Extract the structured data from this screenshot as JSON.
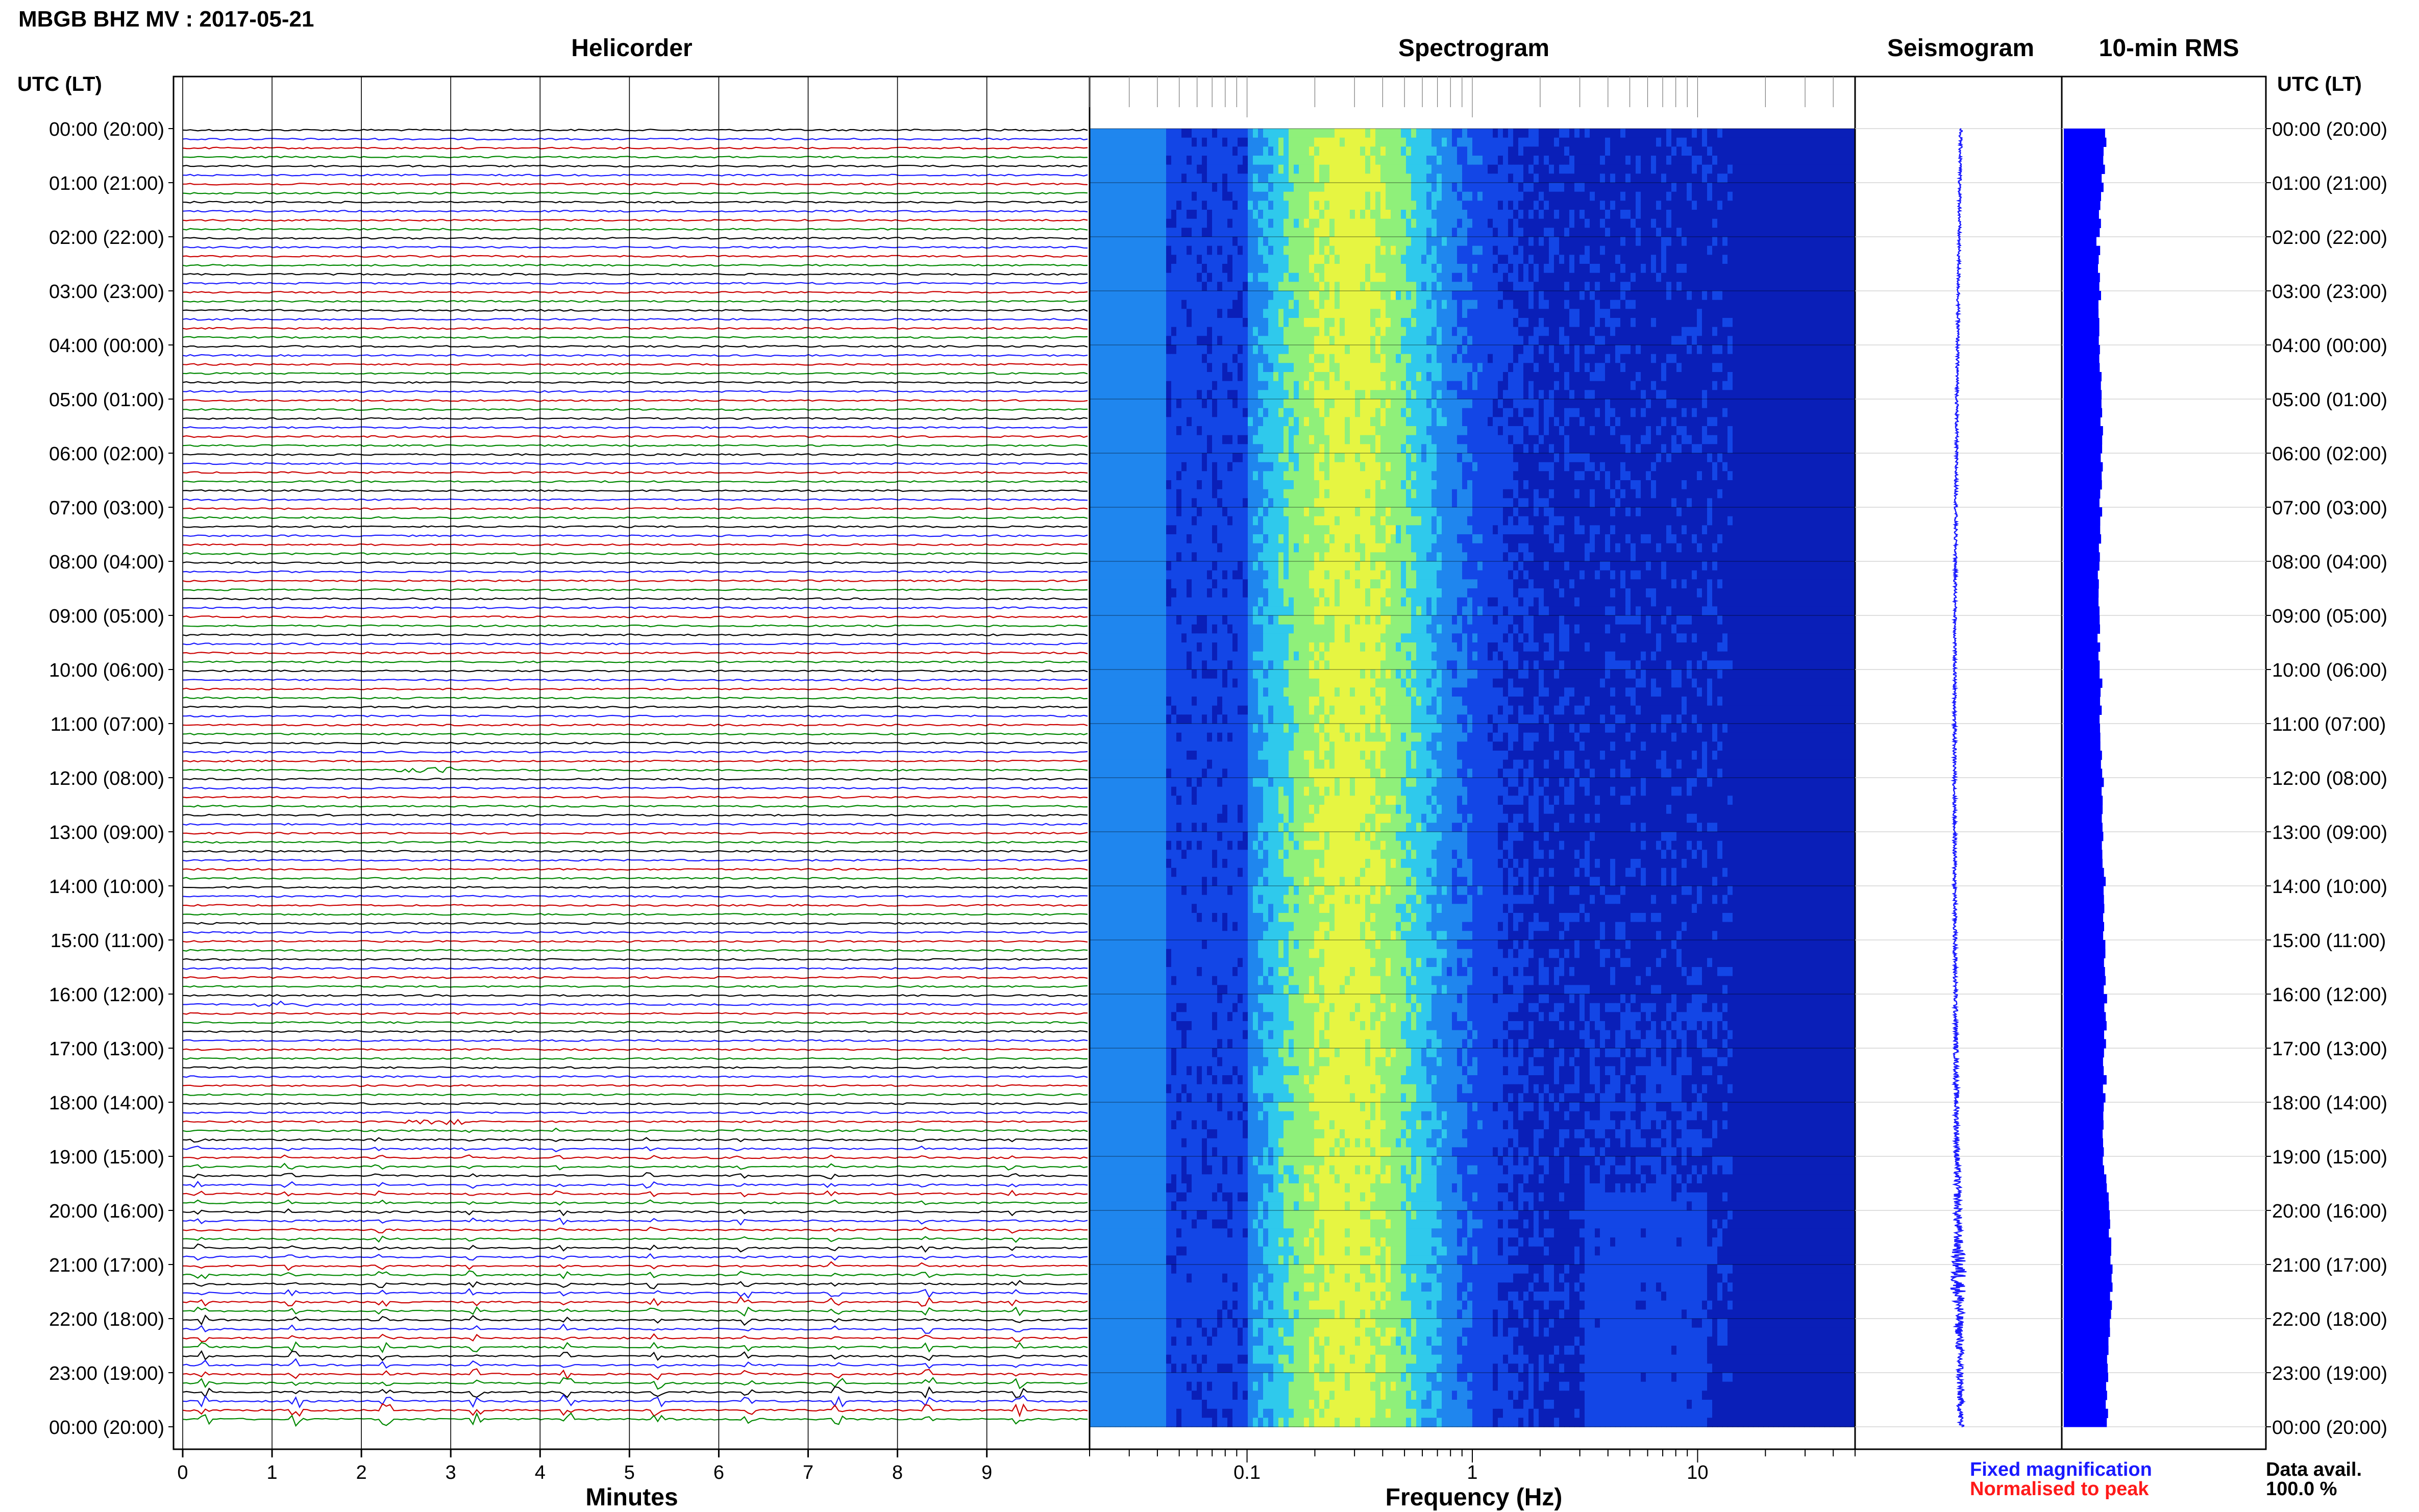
{
  "header": {
    "title": "MBGB BHZ MV : 2017-05-21",
    "tz_label_left": "UTC (LT)",
    "tz_label_right": "UTC (LT)"
  },
  "panels": {
    "helicorder_title": "Helicorder",
    "spectrogram_title": "Spectrogram",
    "seismogram_title": "Seismogram",
    "rms_title": "10-min RMS"
  },
  "time_labels": [
    "00:00 (20:00)",
    "01:00 (21:00)",
    "02:00 (22:00)",
    "03:00 (23:00)",
    "04:00 (00:00)",
    "05:00 (01:00)",
    "06:00 (02:00)",
    "07:00 (03:00)",
    "08:00 (04:00)",
    "09:00 (05:00)",
    "10:00 (06:00)",
    "11:00 (07:00)",
    "12:00 (08:00)",
    "13:00 (09:00)",
    "14:00 (10:00)",
    "15:00 (11:00)",
    "16:00 (12:00)",
    "17:00 (13:00)",
    "18:00 (14:00)",
    "19:00 (15:00)",
    "20:00 (16:00)",
    "21:00 (17:00)",
    "22:00 (18:00)",
    "23:00 (19:00)",
    "00:00 (20:00)"
  ],
  "legend": {
    "fixed_label": "Fixed magnification",
    "fixed_color": "#1a1aff",
    "normalised_label": "Normalised to peak",
    "normalised_color": "#ff1a1a"
  },
  "availability": {
    "label": "Data avail.",
    "value": "100.0 %"
  },
  "chart_data": [
    {
      "type": "line",
      "name": "helicorder",
      "title": "Helicorder",
      "xlabel": "Minutes",
      "x_ticks": [
        "0",
        "1",
        "2",
        "3",
        "4",
        "5",
        "6",
        "7",
        "8",
        "9"
      ],
      "xlim": [
        0,
        10
      ],
      "traces_per_hour": 6,
      "trace_color_cycle": [
        "#000000",
        "#1a1aff",
        "#cc0000",
        "#008800"
      ],
      "events": [
        {
          "hour": 11.8,
          "minute": 2.7,
          "amplitude": 6
        },
        {
          "hour": 16.2,
          "minute": 1.1,
          "amplitude": 5
        },
        {
          "hour": 18.3,
          "minute": 2.8,
          "amplitude": 6
        }
      ],
      "swarm": {
        "start_hour": 18.5,
        "end_hour": 24.0,
        "period_minutes": 1.0
      }
    },
    {
      "type": "heatmap",
      "name": "spectrogram",
      "title": "Spectrogram",
      "xlabel": "Frequency (Hz)",
      "x_scale": "log",
      "xlim": [
        0.02,
        50
      ],
      "x_ticks": [
        {
          "value": 0.1,
          "label": "0.1"
        },
        {
          "value": 1,
          "label": "1"
        },
        {
          "value": 10,
          "label": "10"
        }
      ],
      "colormap": [
        "#0a1fb8",
        "#1346e6",
        "#1f86ee",
        "#2fc9ec",
        "#8ff07a",
        "#e6f542"
      ]
    },
    {
      "type": "line",
      "name": "seismogram",
      "title": "Seismogram",
      "color": "#1a1aff",
      "amplitude_envelope": [
        {
          "hour": 0,
          "amp": 3
        },
        {
          "hour": 10,
          "amp": 3
        },
        {
          "hour": 16,
          "amp": 4
        },
        {
          "hour": 19,
          "amp": 6
        },
        {
          "hour": 20.5,
          "amp": 9
        },
        {
          "hour": 21.2,
          "amp": 18
        },
        {
          "hour": 22,
          "amp": 9
        },
        {
          "hour": 24,
          "amp": 6
        }
      ]
    },
    {
      "type": "bar",
      "name": "rms",
      "title": "10-min RMS",
      "color": "#0000ff",
      "bins_per_hour": 6,
      "relative_level": [
        {
          "hour": 0,
          "level": 0.88
        },
        {
          "hour": 2,
          "level": 0.7
        },
        {
          "hour": 5,
          "level": 0.78
        },
        {
          "hour": 9,
          "level": 0.72
        },
        {
          "hour": 12,
          "level": 0.8
        },
        {
          "hour": 16,
          "level": 0.85
        },
        {
          "hour": 19,
          "level": 0.82
        },
        {
          "hour": 21,
          "level": 1.0
        },
        {
          "hour": 24,
          "level": 0.86
        }
      ]
    }
  ]
}
